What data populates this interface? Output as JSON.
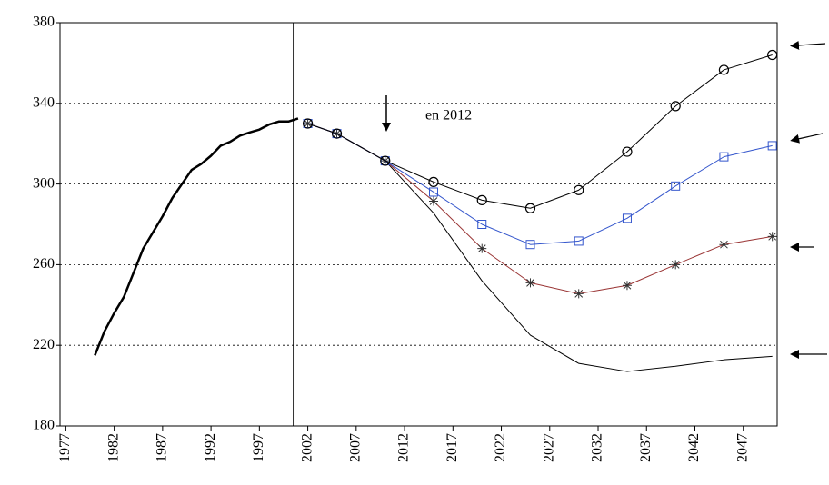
{
  "chart_data": {
    "type": "line",
    "annotation": "en 2012",
    "xlim": [
      1976.4,
      2050.5
    ],
    "xticks": [
      1977,
      1982,
      1987,
      1992,
      1997,
      2002,
      2007,
      2012,
      2017,
      2022,
      2027,
      2032,
      2037,
      2042,
      2047
    ],
    "ylim": [
      180,
      380
    ],
    "yticks": [
      180,
      220,
      260,
      300,
      340,
      380
    ],
    "grid": true,
    "vline": 2000.5,
    "series": [
      {
        "color": "#000000",
        "width": 2.5,
        "marker": "none",
        "x": [
          1980,
          1981,
          1982,
          1983,
          1984,
          1985,
          1986,
          1987,
          1988,
          1989,
          1990,
          1991,
          1992,
          1993,
          1994,
          1995,
          1996,
          1997,
          1998,
          1999,
          2000,
          2001
        ],
        "values": [
          215,
          227,
          236,
          244,
          256,
          268,
          276,
          284,
          293,
          300,
          307,
          310,
          314,
          319,
          321,
          324,
          325.6,
          327,
          329.5,
          331,
          331,
          332.5
        ]
      },
      {
        "color": "#000000",
        "width": 1,
        "marker": "none",
        "x": [
          2002,
          2005,
          2010,
          2015,
          2020,
          2025,
          2030,
          2035,
          2040,
          2045,
          2050
        ],
        "values": [
          330,
          325,
          311.5,
          285.6,
          252,
          225,
          211,
          207,
          209.6,
          212.8,
          214.5
        ]
      },
      {
        "color": "#993333",
        "markercolor": "#333333",
        "width": 1,
        "marker": "star",
        "x": [
          2002,
          2005,
          2010,
          2015,
          2020,
          2025,
          2030,
          2035,
          2040,
          2045,
          2050
        ],
        "values": [
          330,
          325,
          311.5,
          291.5,
          268,
          251,
          245.6,
          249.7,
          260,
          270,
          274
        ]
      },
      {
        "color": "#3355cc",
        "markercolor": "#3355cc",
        "width": 1,
        "marker": "square",
        "x": [
          2002,
          2005,
          2010,
          2015,
          2020,
          2025,
          2030,
          2035,
          2040,
          2045,
          2050
        ],
        "values": [
          330,
          325,
          311.5,
          296,
          280,
          270,
          271.7,
          283,
          299,
          313.5,
          319
        ]
      },
      {
        "color": "#000000",
        "markercolor": "#000000",
        "width": 1,
        "marker": "circle",
        "x": [
          2002,
          2005,
          2010,
          2015,
          2020,
          2025,
          2030,
          2035,
          2040,
          2045,
          2050
        ],
        "values": [
          330,
          325,
          311.5,
          301,
          292,
          288,
          297,
          316,
          338.6,
          356.6,
          364
        ]
      }
    ]
  }
}
